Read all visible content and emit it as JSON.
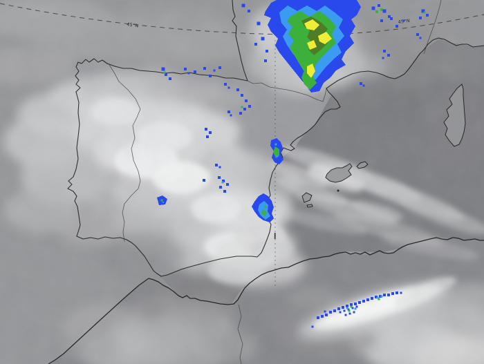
{
  "graticule": {
    "lat_45n_label": "45°N"
  },
  "colors": {
    "base_sea_atlantic": "#96979a",
    "sea_mediterranean": "#7e7f83",
    "land_iberia": "#9b9ca0",
    "land_france": "#97989b",
    "land_africa": "#87888c",
    "coastline": "#1c1c1c",
    "border": "#3e3e3e",
    "graticule": "#333333",
    "rain1": "#2a49ec",
    "rain2": "#3b9bf3",
    "rain3": "#3cb03a",
    "rain4": "#4f7d27",
    "rain5": "#efed35"
  },
  "radar_echoes": [
    {
      "name": "pyrenees-storm",
      "polys": [
        {
          "c": "rain1",
          "p": "384,16 392,4 400,0 516,0 522,10 516,22 508,28 514,38 506,52 512,62 500,74 494,86 500,94 486,102 478,112 468,120 462,132 450,134 443,124 436,116 428,106 420,96 412,86 404,76 398,66 402,56 392,46 387,36 392,26 382,22"
        },
        {
          "c": "rain2",
          "p": "404,18 416,8 430,16 444,8 458,16 470,8 484,18 496,28 490,40 498,52 488,64 494,76 482,86 472,96 464,106 456,116 447,107 439,97 431,87 423,77 415,65 409,53 415,43 407,33"
        },
        {
          "c": "rain3",
          "p": "420,24 434,16 448,24 462,16 476,26 486,38 480,50 486,62 476,72 466,82 458,92 450,102 444,110 437,99 431,89 425,79 419,69 425,59 417,49 423,39 415,31"
        },
        {
          "c": "rain4",
          "p": "436,30 450,24 464,32 474,42 466,52 474,62 464,72 454,80 446,72 452,62 444,54 448,44 440,38"
        },
        {
          "c": "rain5",
          "p": "440,34 452,28 462,36 454,44 444,42"
        },
        {
          "c": "rain5",
          "p": "460,52 472,46 480,56 470,64 462,60"
        },
        {
          "c": "rain5",
          "p": "444,62 454,58 458,68 448,72"
        },
        {
          "c": "rain3",
          "p": "436,92 448,86 456,96 452,110 458,120 448,130 440,122 436,112 440,102"
        },
        {
          "c": "rain5",
          "p": "444,96 452,92 456,103 450,113 444,106"
        }
      ],
      "dots": [
        [
          374,
          34,
          5,
          "rain1"
        ],
        [
          380,
          56,
          5,
          "rain1"
        ],
        [
          370,
          64,
          4,
          "rain1"
        ],
        [
          352,
          8,
          5,
          "rain1"
        ],
        [
          360,
          16,
          4,
          "rain1"
        ],
        [
          386,
          74,
          4,
          "rain1"
        ],
        [
          384,
          88,
          4,
          "rain1"
        ]
      ]
    },
    {
      "name": "france-scattered-cells",
      "polys": [],
      "dots": [
        [
          540,
          12,
          5,
          "rain1"
        ],
        [
          548,
          8,
          4,
          "rain1"
        ],
        [
          545,
          17,
          4,
          "rain3"
        ],
        [
          552,
          14,
          4,
          "rain3"
        ],
        [
          556,
          16,
          5,
          "rain1"
        ],
        [
          563,
          24,
          4,
          "rain1"
        ],
        [
          552,
          30,
          4,
          "rain1"
        ],
        [
          566,
          27,
          4,
          "rain1"
        ],
        [
          574,
          38,
          4,
          "rain1"
        ],
        [
          584,
          30,
          3,
          "rain1"
        ],
        [
          612,
          16,
          5,
          "rain1"
        ],
        [
          618,
          22,
          4,
          "rain1"
        ],
        [
          608,
          26,
          4,
          "rain1"
        ],
        [
          614,
          18,
          3,
          "rain3"
        ],
        [
          604,
          50,
          4,
          "rain1"
        ],
        [
          608,
          55,
          3,
          "rain1"
        ],
        [
          556,
          74,
          4,
          "rain1"
        ],
        [
          562,
          80,
          4,
          "rain1"
        ],
        [
          554,
          84,
          3,
          "rain1"
        ],
        [
          522,
          121,
          4,
          "rain1"
        ],
        [
          526,
          124,
          3,
          "rain1"
        ]
      ]
    },
    {
      "name": "cantabrian-cells",
      "polys": [],
      "dots": [
        [
          236,
          100,
          5,
          "rain1"
        ],
        [
          240,
          108,
          4,
          "rain1"
        ],
        [
          246,
          114,
          4,
          "rain1"
        ],
        [
          238,
          105,
          3,
          "rain3"
        ],
        [
          268,
          100,
          4,
          "rain1"
        ],
        [
          273,
          106,
          3,
          "rain1"
        ],
        [
          282,
          104,
          4,
          "rain1"
        ],
        [
          296,
          99,
          4,
          "rain1"
        ],
        [
          304,
          110,
          4,
          "rain1"
        ],
        [
          310,
          102,
          3,
          "rain1"
        ],
        [
          318,
          98,
          4,
          "rain1"
        ],
        [
          326,
          122,
          4,
          "rain1"
        ],
        [
          331,
          127,
          3,
          "rain1"
        ],
        [
          344,
          130,
          4,
          "rain1"
        ],
        [
          350,
          138,
          4,
          "rain1"
        ],
        [
          356,
          146,
          4,
          "rain1"
        ],
        [
          361,
          154,
          4,
          "rain1"
        ],
        [
          354,
          158,
          4,
          "rain1"
        ],
        [
          348,
          164,
          4,
          "rain1"
        ],
        [
          350,
          155,
          3,
          "rain3"
        ]
      ]
    },
    {
      "name": "central-iberia-cells",
      "polys": [],
      "dots": [
        [
          331,
          162,
          4,
          "rain1"
        ],
        [
          334,
          167,
          3,
          "rain1"
        ],
        [
          298,
          187,
          4,
          "rain1"
        ],
        [
          304,
          192,
          4,
          "rain1"
        ],
        [
          300,
          198,
          4,
          "rain1"
        ],
        [
          313,
          239,
          4,
          "rain1"
        ],
        [
          318,
          242,
          3,
          "rain1"
        ],
        [
          295,
          261,
          4,
          "rain1"
        ],
        [
          317,
          257,
          4,
          "rain1"
        ],
        [
          323,
          262,
          4,
          "rain1"
        ],
        [
          329,
          267,
          4,
          "rain1"
        ],
        [
          319,
          271,
          4,
          "rain1"
        ],
        [
          325,
          277,
          4,
          "rain1"
        ],
        [
          322,
          264,
          3,
          "rain2"
        ]
      ]
    },
    {
      "name": "extremadura-echo",
      "polys": [
        {
          "c": "rain1",
          "p": "227,286 235,283 242,288 239,296 230,297"
        }
      ],
      "dots": [
        [
          234,
          290,
          3,
          "rain3"
        ],
        [
          236,
          293,
          2,
          "rain2"
        ]
      ]
    },
    {
      "name": "valencia-coast-echo",
      "polys": [
        {
          "c": "rain1",
          "p": "392,203 400,200 406,206 409,214 406,223 410,231 404,238 397,235 393,228 396,219 391,211"
        },
        {
          "c": "rain3",
          "p": "398,212 404,216 404,225 399,229 395,220"
        }
      ],
      "dots": [
        [
          401,
          226,
          3,
          "rain2"
        ],
        [
          399,
          209,
          3,
          "rain2"
        ]
      ]
    },
    {
      "name": "alicante-coast-echo",
      "polys": [
        {
          "c": "rain1",
          "p": "368,292 374,284 381,280 388,284 393,291 396,300 393,309 396,316 390,322 381,319 374,314 368,306 364,299"
        },
        {
          "c": "rain2",
          "p": "375,296 382,291 388,297 387,306 391,313 384,318 377,312 373,304"
        },
        {
          "c": "rain3",
          "p": "380,303 386,307 383,313 378,309"
        }
      ],
      "dots": [
        [
          384,
          299,
          3,
          "rain3"
        ]
      ]
    },
    {
      "name": "algeria-line-echoes",
      "polys": [],
      "dots": [
        [
          460,
          460,
          4,
          "rain1"
        ],
        [
          466,
          458,
          4,
          "rain1"
        ],
        [
          472,
          456,
          4,
          "rain1"
        ],
        [
          470,
          451,
          3,
          "rain1"
        ],
        [
          478,
          452,
          4,
          "rain1"
        ],
        [
          484,
          450,
          4,
          "rain1"
        ],
        [
          490,
          447,
          4,
          "rain1"
        ],
        [
          496,
          445,
          4,
          "rain1"
        ],
        [
          502,
          443,
          4,
          "rain1"
        ],
        [
          508,
          441,
          4,
          "rain1"
        ],
        [
          514,
          440,
          4,
          "rain1"
        ],
        [
          520,
          438,
          4,
          "rain1"
        ],
        [
          526,
          436,
          4,
          "rain1"
        ],
        [
          532,
          434,
          4,
          "rain1"
        ],
        [
          538,
          432,
          4,
          "rain1"
        ],
        [
          544,
          430,
          4,
          "rain1"
        ],
        [
          550,
          429,
          4,
          "rain1"
        ],
        [
          556,
          427,
          4,
          "rain1"
        ],
        [
          562,
          427,
          4,
          "rain1"
        ],
        [
          568,
          425,
          4,
          "rain1"
        ],
        [
          574,
          424,
          4,
          "rain1"
        ],
        [
          580,
          424,
          3,
          "rain1"
        ],
        [
          492,
          452,
          3,
          "rain1"
        ],
        [
          498,
          450,
          3,
          "rain1"
        ],
        [
          504,
          448,
          3,
          "rain1"
        ],
        [
          510,
          446,
          3,
          "rain1"
        ],
        [
          516,
          444,
          3,
          "rain1"
        ],
        [
          500,
          456,
          3,
          "rain1"
        ],
        [
          506,
          454,
          3,
          "rain1"
        ],
        [
          512,
          452,
          3,
          "rain1"
        ],
        [
          452,
          473,
          3,
          "rain1"
        ],
        [
          546,
          431,
          3,
          "rain2"
        ],
        [
          552,
          429,
          3,
          "rain2"
        ],
        [
          502,
          446,
          3,
          "rain2"
        ],
        [
          514,
          447,
          3,
          "rain2"
        ],
        [
          508,
          444,
          3,
          "rain3"
        ],
        [
          505,
          450,
          3,
          "rain3"
        ],
        [
          548,
          433,
          3,
          "rain3"
        ]
      ]
    }
  ]
}
